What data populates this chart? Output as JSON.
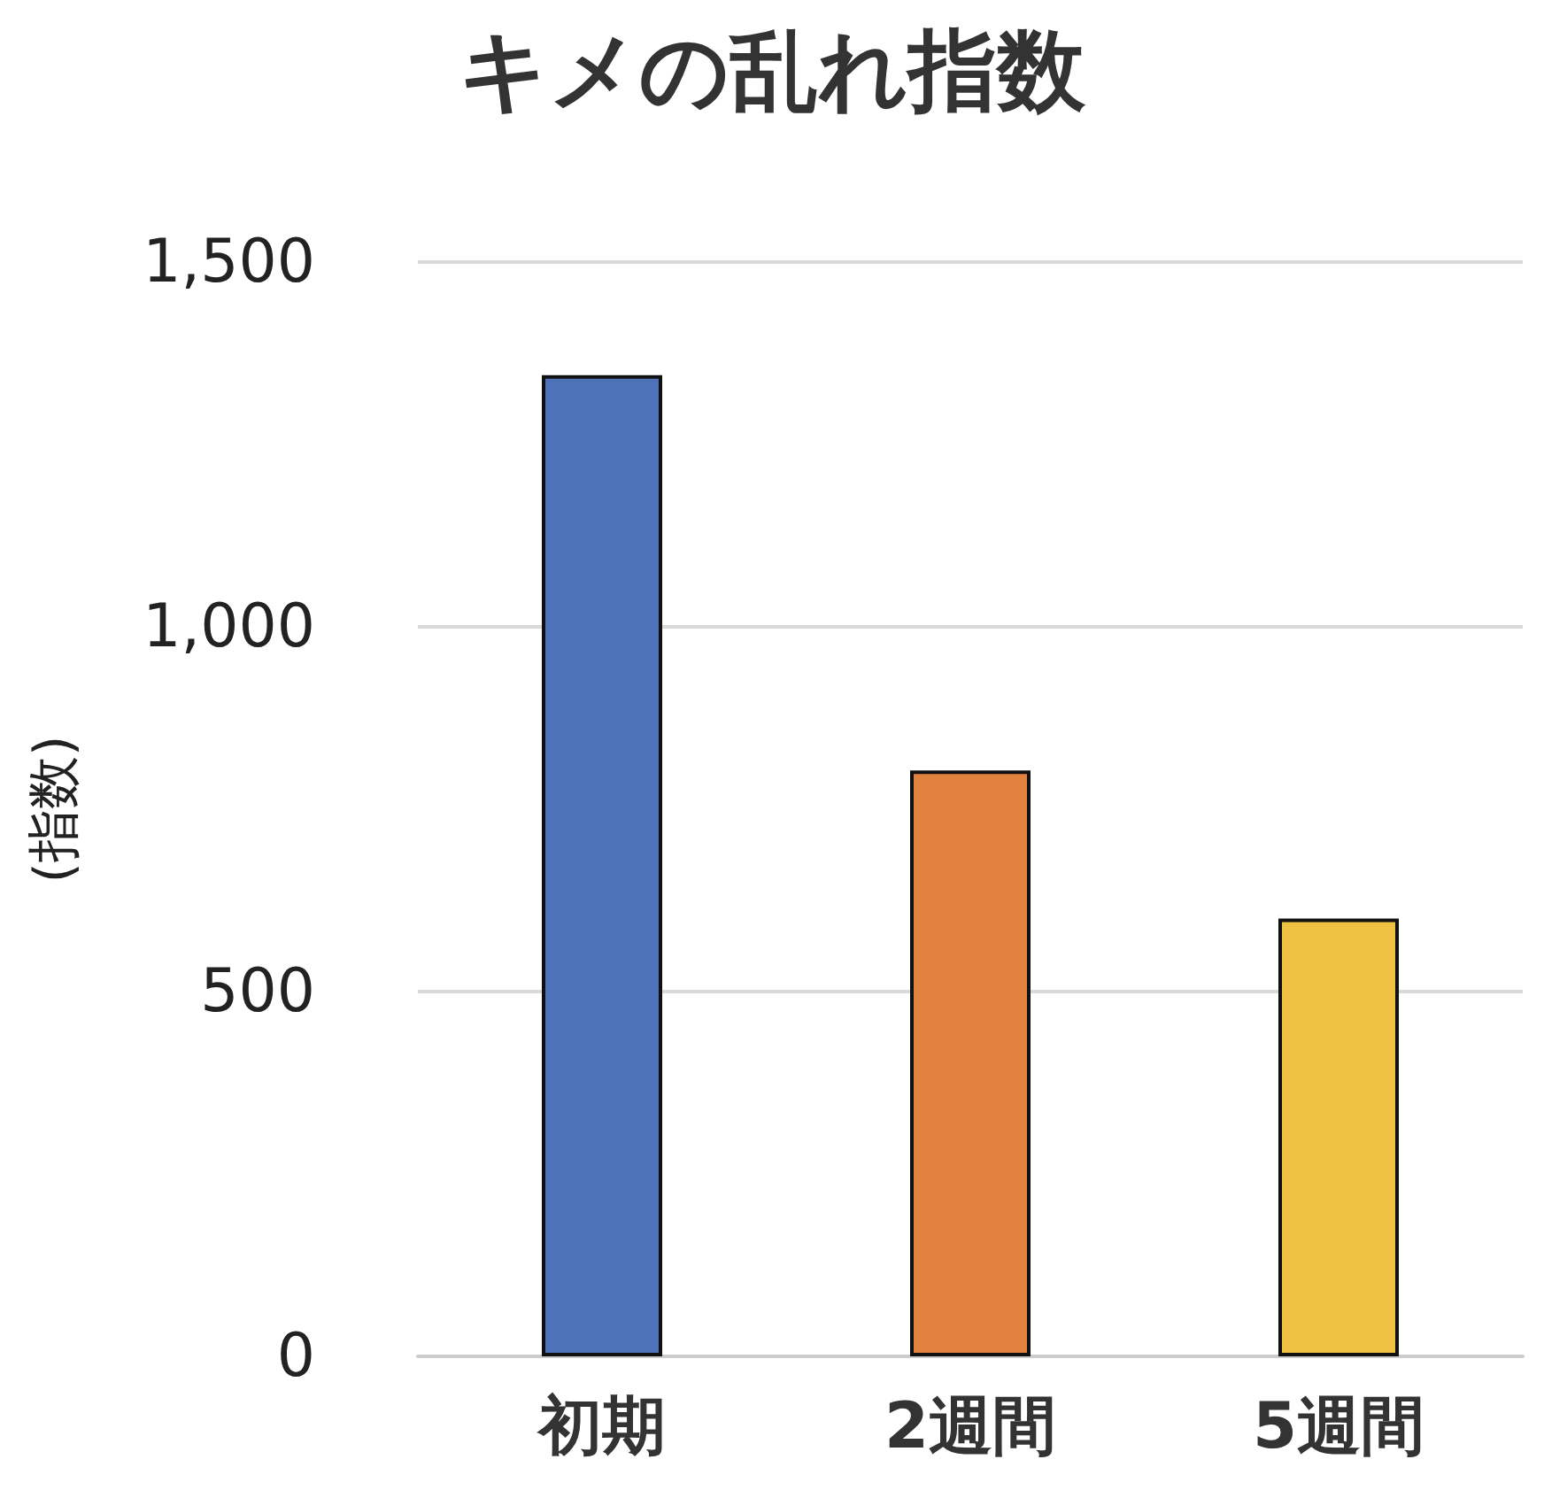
{
  "chart_data": {
    "type": "bar",
    "title": "キメの乱れ指数",
    "ylabel": "(指数)",
    "categories": [
      "初期",
      "2週間",
      "5週間"
    ],
    "values": [
      1345,
      803,
      600
    ],
    "colors": [
      "#4e72b8",
      "#e0813f",
      "#f0c243"
    ],
    "ylim": [
      0,
      1500
    ],
    "yticks": [
      {
        "value": 0,
        "label": "0"
      },
      {
        "value": 500,
        "label": "500"
      },
      {
        "value": 1000,
        "label": "1,000"
      },
      {
        "value": 1500,
        "label": "1,500"
      }
    ],
    "grid": "y"
  }
}
